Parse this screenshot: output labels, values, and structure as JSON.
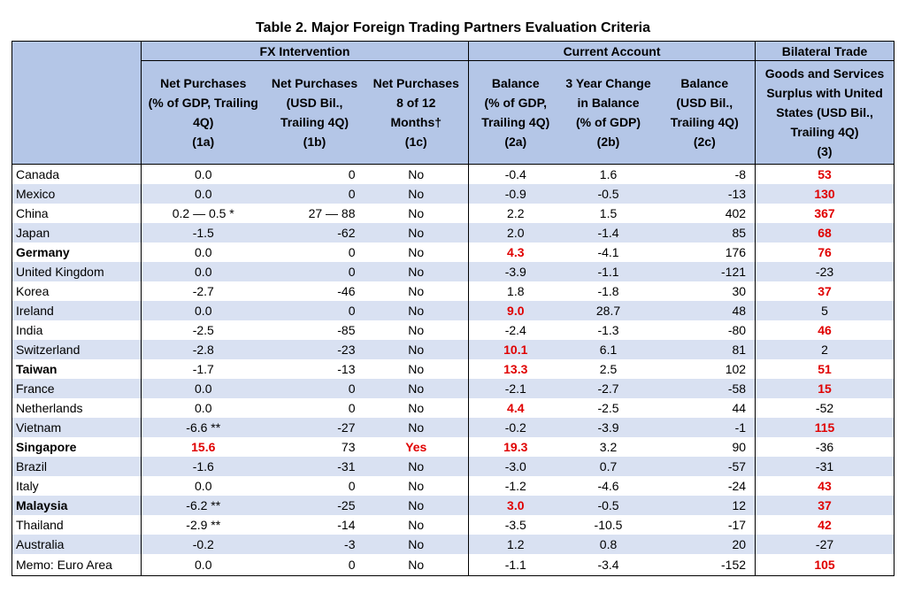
{
  "title": "Table 2. Major Foreign Trading Partners Evaluation Criteria",
  "groups": {
    "fx": "FX Intervention",
    "ca": "Current Account",
    "bt": "Bilateral Trade"
  },
  "columns": {
    "c1a": [
      "Net Purchases",
      "(% of GDP, Trailing",
      "4Q)",
      "(1a)"
    ],
    "c1b": [
      "Net Purchases",
      "(USD Bil.,",
      "Trailing 4Q)",
      "(1b)"
    ],
    "c1c": [
      "Net Purchases",
      "8 of 12",
      "Months†",
      "(1c)"
    ],
    "c2a": [
      "Balance",
      "(% of GDP,",
      "Trailing 4Q)",
      "(2a)"
    ],
    "c2b": [
      "3 Year Change",
      "in Balance",
      "(% of GDP)",
      "(2b)"
    ],
    "c2c": [
      "Balance",
      "(USD Bil.,",
      "Trailing 4Q)",
      "(2c)"
    ],
    "c3": [
      "Goods and Services",
      "Surplus with United",
      "States (USD Bil.,",
      "Trailing 4Q)",
      "(3)"
    ]
  },
  "rows": [
    {
      "country": "Canada",
      "bold": false,
      "c1a": "0.0",
      "c1b": "0",
      "c1c": "No",
      "c2a": "-0.4",
      "c2b": "1.6",
      "c2c": "-8",
      "c3": "53",
      "red": [
        "c3"
      ]
    },
    {
      "country": "Mexico",
      "bold": false,
      "c1a": "0.0",
      "c1b": "0",
      "c1c": "No",
      "c2a": "-0.9",
      "c2b": "-0.5",
      "c2c": "-13",
      "c3": "130",
      "red": [
        "c3"
      ]
    },
    {
      "country": "China",
      "bold": false,
      "c1a": "0.2 — 0.5 *",
      "c1b": "27 — 88",
      "c1c": "No",
      "c2a": "2.2",
      "c2b": "1.5",
      "c2c": "402",
      "c3": "367",
      "red": [
        "c3"
      ]
    },
    {
      "country": "Japan",
      "bold": false,
      "c1a": "-1.5",
      "c1b": "-62",
      "c1c": "No",
      "c2a": "2.0",
      "c2b": "-1.4",
      "c2c": "85",
      "c3": "68",
      "red": [
        "c3"
      ]
    },
    {
      "country": "Germany",
      "bold": true,
      "c1a": "0.0",
      "c1b": "0",
      "c1c": "No",
      "c2a": "4.3",
      "c2b": "-4.1",
      "c2c": "176",
      "c3": "76",
      "red": [
        "c2a",
        "c3"
      ]
    },
    {
      "country": "United Kingdom",
      "bold": false,
      "c1a": "0.0",
      "c1b": "0",
      "c1c": "No",
      "c2a": "-3.9",
      "c2b": "-1.1",
      "c2c": "-121",
      "c3": "-23",
      "red": []
    },
    {
      "country": "Korea",
      "bold": false,
      "c1a": "-2.7",
      "c1b": "-46",
      "c1c": "No",
      "c2a": "1.8",
      "c2b": "-1.8",
      "c2c": "30",
      "c3": "37",
      "red": [
        "c3"
      ]
    },
    {
      "country": "Ireland",
      "bold": false,
      "c1a": "0.0",
      "c1b": "0",
      "c1c": "No",
      "c2a": "9.0",
      "c2b": "28.7",
      "c2c": "48",
      "c3": "5",
      "red": [
        "c2a"
      ]
    },
    {
      "country": "India",
      "bold": false,
      "c1a": "-2.5",
      "c1b": "-85",
      "c1c": "No",
      "c2a": "-2.4",
      "c2b": "-1.3",
      "c2c": "-80",
      "c3": "46",
      "red": [
        "c3"
      ]
    },
    {
      "country": "Switzerland",
      "bold": false,
      "c1a": "-2.8",
      "c1b": "-23",
      "c1c": "No",
      "c2a": "10.1",
      "c2b": "6.1",
      "c2c": "81",
      "c3": "2",
      "red": [
        "c2a"
      ]
    },
    {
      "country": "Taiwan",
      "bold": true,
      "c1a": "-1.7",
      "c1b": "-13",
      "c1c": "No",
      "c2a": "13.3",
      "c2b": "2.5",
      "c2c": "102",
      "c3": "51",
      "red": [
        "c2a",
        "c3"
      ]
    },
    {
      "country": "France",
      "bold": false,
      "c1a": "0.0",
      "c1b": "0",
      "c1c": "No",
      "c2a": "-2.1",
      "c2b": "-2.7",
      "c2c": "-58",
      "c3": "15",
      "red": [
        "c3"
      ]
    },
    {
      "country": "Netherlands",
      "bold": false,
      "c1a": "0.0",
      "c1b": "0",
      "c1c": "No",
      "c2a": "4.4",
      "c2b": "-2.5",
      "c2c": "44",
      "c3": "-52",
      "red": [
        "c2a"
      ]
    },
    {
      "country": "Vietnam",
      "bold": false,
      "c1a": "-6.6 **",
      "c1b": "-27",
      "c1c": "No",
      "c2a": "-0.2",
      "c2b": "-3.9",
      "c2c": "-1",
      "c3": "115",
      "red": [
        "c3"
      ]
    },
    {
      "country": "Singapore",
      "bold": true,
      "c1a": "15.6",
      "c1b": "73",
      "c1c": "Yes",
      "c2a": "19.3",
      "c2b": "3.2",
      "c2c": "90",
      "c3": "-36",
      "red": [
        "c1a",
        "c1c",
        "c2a"
      ]
    },
    {
      "country": "Brazil",
      "bold": false,
      "c1a": "-1.6",
      "c1b": "-31",
      "c1c": "No",
      "c2a": "-3.0",
      "c2b": "0.7",
      "c2c": "-57",
      "c3": "-31",
      "red": []
    },
    {
      "country": "Italy",
      "bold": false,
      "c1a": "0.0",
      "c1b": "0",
      "c1c": "No",
      "c2a": "-1.2",
      "c2b": "-4.6",
      "c2c": "-24",
      "c3": "43",
      "red": [
        "c3"
      ]
    },
    {
      "country": "Malaysia",
      "bold": true,
      "c1a": "-6.2 **",
      "c1b": "-25",
      "c1c": "No",
      "c2a": "3.0",
      "c2b": "-0.5",
      "c2c": "12",
      "c3": "37",
      "red": [
        "c2a",
        "c3"
      ]
    },
    {
      "country": "Thailand",
      "bold": false,
      "c1a": "-2.9 **",
      "c1b": "-14",
      "c1c": "No",
      "c2a": "-3.5",
      "c2b": "-10.5",
      "c2c": "-17",
      "c3": "42",
      "red": [
        "c3"
      ]
    },
    {
      "country": "Australia",
      "bold": false,
      "c1a": "-0.2",
      "c1b": "-3",
      "c1c": "No",
      "c2a": "1.2",
      "c2b": "0.8",
      "c2c": "20",
      "c3": "-27",
      "red": []
    },
    {
      "country": "Memo: Euro Area",
      "bold": false,
      "c1a": "0.0",
      "c1b": "0",
      "c1c": "No",
      "c2a": "-1.1",
      "c2b": "-3.4",
      "c2c": "-152",
      "c3": "105",
      "red": [
        "c3"
      ]
    }
  ],
  "colors": {
    "header_bg": "#b4c6e7",
    "stripe_bg": "#d9e1f2",
    "highlight": "#e00000"
  }
}
